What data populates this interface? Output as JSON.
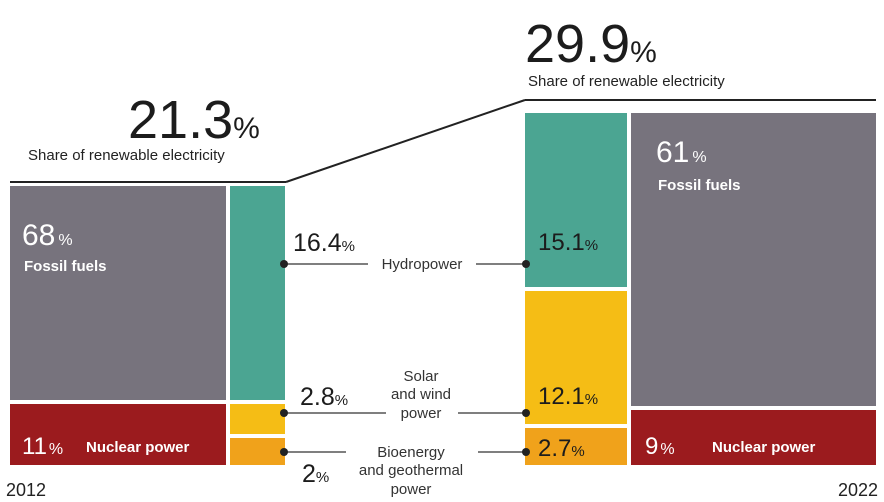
{
  "chart_data": {
    "type": "bar",
    "years": [
      "2012",
      "2022"
    ],
    "renewable_share": {
      "2012": {
        "value": "21.3",
        "unit": "%",
        "label": "Share of renewable electricity"
      },
      "2022": {
        "value": "29.9",
        "unit": "%",
        "label": "Share of renewable electricity"
      }
    },
    "series": [
      {
        "name": "Fossil fuels",
        "color": "#77737d",
        "values": [
          68,
          61
        ]
      },
      {
        "name": "Nuclear power",
        "color": "#9b1b1e",
        "values": [
          11,
          9
        ]
      },
      {
        "name": "Hydropower",
        "color": "#4ba592",
        "values": [
          16.4,
          15.1
        ]
      },
      {
        "name": "Solar and wind power",
        "color": "#f5bd15",
        "values": [
          2.8,
          12.1
        ]
      },
      {
        "name": "Bioenergy and geothermal power",
        "color": "#f0a21b",
        "values": [
          2,
          2.7
        ]
      }
    ],
    "labels": {
      "fossil_2012": "68",
      "fossil_2022": "61",
      "fossil_name": "Fossil fuels",
      "nuclear_2012": "11",
      "nuclear_2022": "9",
      "nuclear_name": "Nuclear power",
      "hydro_2012": "16.4",
      "hydro_2022": "15.1",
      "hydro_name": "Hydropower",
      "solar_2012": "2.8",
      "solar_2022": "12.1",
      "solar_name_1": "Solar",
      "solar_name_2": "and wind",
      "solar_name_3": "power",
      "bio_2012": "2",
      "bio_2022": "2.7",
      "bio_name_1": "Bioenergy",
      "bio_name_2": "and geothermal",
      "bio_name_3": "power",
      "pct": "%"
    }
  }
}
